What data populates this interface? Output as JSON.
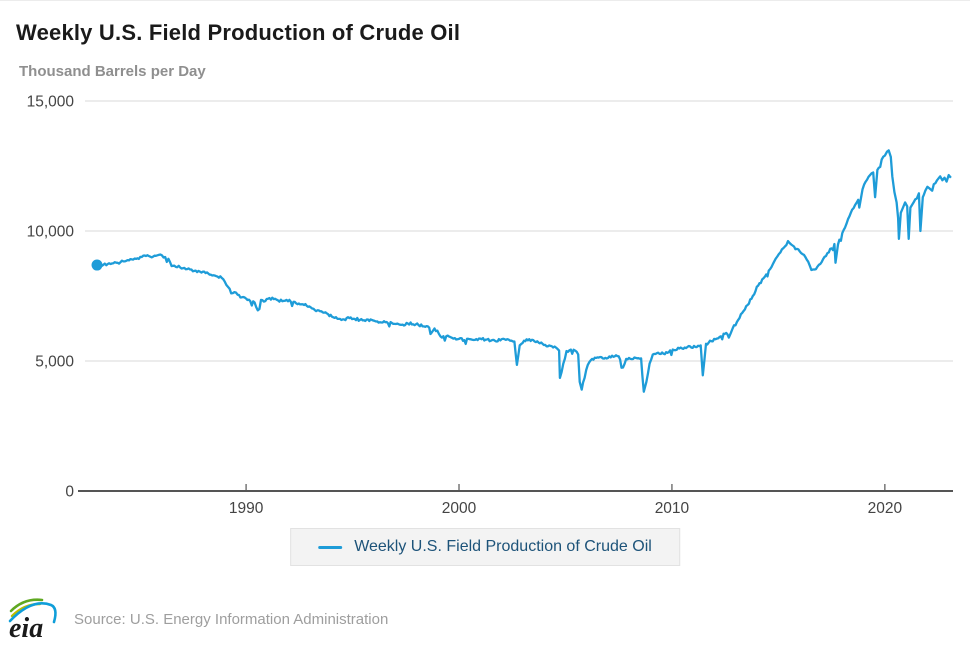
{
  "page": {
    "title": "Weekly U.S. Field Production of Crude Oil",
    "subtitle": "Thousand Barrels per Day",
    "source": "Source: U.S. Energy Information Administration",
    "logo_text": "eia"
  },
  "legend": {
    "label": "Weekly U.S. Field Production of Crude Oil"
  },
  "colors": {
    "line": "#1e9cd8",
    "legend_text": "#1d5379",
    "legend_bg": "#f3f3f3",
    "legend_border": "#e2e2e2",
    "grid": "#d9d9d9",
    "axis": "#555555",
    "tick_label": "#444444",
    "title": "#1a1a1a",
    "subtitle": "#8f8f8f",
    "source_text": "#9e9e9e",
    "logo_green": "#5fa821",
    "logo_yellow": "#bcbe00",
    "logo_blue": "#0f9ed9",
    "logo_text": "#1a1a1a"
  },
  "chart_data": {
    "type": "line",
    "title": "Weekly U.S. Field Production of Crude Oil",
    "xlabel": "",
    "ylabel": "Thousand Barrels per Day",
    "units": "thousand barrels per day",
    "frequency": "weekly",
    "xlim": [
      1982.2,
      2023.2
    ],
    "ylim": [
      0,
      15000
    ],
    "x_ticks": [
      1990,
      2000,
      2010,
      2020
    ],
    "x_tick_labels": [
      "1990",
      "2000",
      "2010",
      "2020"
    ],
    "y_ticks": [
      0,
      5000,
      10000,
      15000
    ],
    "y_tick_labels": [
      "0",
      "5,000",
      "10,000",
      "15,000"
    ],
    "grid": "horizontal",
    "legend_position": "bottom-center",
    "start_marker": true,
    "noise_amplitude": 55,
    "series": [
      {
        "name": "Weekly U.S. Field Production of Crude Oil",
        "points": [
          [
            1983.0,
            8690
          ],
          [
            1983.15,
            8650
          ],
          [
            1983.3,
            8700
          ],
          [
            1983.5,
            8730
          ],
          [
            1983.7,
            8750
          ],
          [
            1983.9,
            8780
          ],
          [
            1984.1,
            8800
          ],
          [
            1984.3,
            8830
          ],
          [
            1984.5,
            8870
          ],
          [
            1984.7,
            8900
          ],
          [
            1984.9,
            8950
          ],
          [
            1985.1,
            9000
          ],
          [
            1985.3,
            9040
          ],
          [
            1985.5,
            9010
          ],
          [
            1985.7,
            9050
          ],
          [
            1985.9,
            9080
          ],
          [
            1986.05,
            9060
          ],
          [
            1986.2,
            9000
          ],
          [
            1986.35,
            8930
          ],
          [
            1986.5,
            8650
          ],
          [
            1986.7,
            8620
          ],
          [
            1986.9,
            8600
          ],
          [
            1987.1,
            8580
          ],
          [
            1987.3,
            8560
          ],
          [
            1987.5,
            8450
          ],
          [
            1987.7,
            8420
          ],
          [
            1987.9,
            8400
          ],
          [
            1988.1,
            8380
          ],
          [
            1988.35,
            8320
          ],
          [
            1988.6,
            8260
          ],
          [
            1988.85,
            8200
          ],
          [
            1989.0,
            8050
          ],
          [
            1989.15,
            7850
          ],
          [
            1989.3,
            7600
          ],
          [
            1989.45,
            7650
          ],
          [
            1989.6,
            7550
          ],
          [
            1989.8,
            7450
          ],
          [
            1990.0,
            7400
          ],
          [
            1990.2,
            7300
          ],
          [
            1990.4,
            7250
          ],
          [
            1990.55,
            6950
          ],
          [
            1990.7,
            7350
          ],
          [
            1990.9,
            7300
          ],
          [
            1991.1,
            7420
          ],
          [
            1991.3,
            7380
          ],
          [
            1991.5,
            7330
          ],
          [
            1991.7,
            7300
          ],
          [
            1991.9,
            7350
          ],
          [
            1992.1,
            7280
          ],
          [
            1992.35,
            7220
          ],
          [
            1992.6,
            7180
          ],
          [
            1992.85,
            7120
          ],
          [
            1993.1,
            7020
          ],
          [
            1993.35,
            6950
          ],
          [
            1993.6,
            6870
          ],
          [
            1993.85,
            6800
          ],
          [
            1994.1,
            6680
          ],
          [
            1994.35,
            6620
          ],
          [
            1994.6,
            6600
          ],
          [
            1994.85,
            6650
          ],
          [
            1995.1,
            6620
          ],
          [
            1995.35,
            6580
          ],
          [
            1995.6,
            6540
          ],
          [
            1995.85,
            6600
          ],
          [
            1996.1,
            6520
          ],
          [
            1996.35,
            6480
          ],
          [
            1996.6,
            6500
          ],
          [
            1996.85,
            6460
          ],
          [
            1997.1,
            6440
          ],
          [
            1997.35,
            6400
          ],
          [
            1997.6,
            6440
          ],
          [
            1997.85,
            6410
          ],
          [
            1998.1,
            6380
          ],
          [
            1998.35,
            6330
          ],
          [
            1998.6,
            6280
          ],
          [
            1998.72,
            6100
          ],
          [
            1998.85,
            6250
          ],
          [
            1999.05,
            6050
          ],
          [
            1999.2,
            5900
          ],
          [
            1999.4,
            5950
          ],
          [
            1999.6,
            5920
          ],
          [
            1999.8,
            5880
          ],
          [
            2000.0,
            5850
          ],
          [
            2000.25,
            5800
          ],
          [
            2000.5,
            5840
          ],
          [
            2000.75,
            5810
          ],
          [
            2001.0,
            5860
          ],
          [
            2001.25,
            5820
          ],
          [
            2001.5,
            5780
          ],
          [
            2001.75,
            5750
          ],
          [
            2002.0,
            5840
          ],
          [
            2002.2,
            5810
          ],
          [
            2002.4,
            5780
          ],
          [
            2002.6,
            5750
          ],
          [
            2002.72,
            4850
          ],
          [
            2002.85,
            5600
          ],
          [
            2003.05,
            5780
          ],
          [
            2003.3,
            5840
          ],
          [
            2003.55,
            5750
          ],
          [
            2003.8,
            5680
          ],
          [
            2004.05,
            5620
          ],
          [
            2004.3,
            5580
          ],
          [
            2004.55,
            5520
          ],
          [
            2004.7,
            5400
          ],
          [
            2004.74,
            4350
          ],
          [
            2004.9,
            4900
          ],
          [
            2005.05,
            5380
          ],
          [
            2005.25,
            5440
          ],
          [
            2005.45,
            5400
          ],
          [
            2005.6,
            5250
          ],
          [
            2005.67,
            4200
          ],
          [
            2005.76,
            3900
          ],
          [
            2005.9,
            4350
          ],
          [
            2006.05,
            4850
          ],
          [
            2006.25,
            5080
          ],
          [
            2006.5,
            5140
          ],
          [
            2006.75,
            5100
          ],
          [
            2007.0,
            5120
          ],
          [
            2007.25,
            5160
          ],
          [
            2007.5,
            5180
          ],
          [
            2007.7,
            4750
          ],
          [
            2007.85,
            5080
          ],
          [
            2008.05,
            5080
          ],
          [
            2008.3,
            5120
          ],
          [
            2008.55,
            5100
          ],
          [
            2008.68,
            3820
          ],
          [
            2008.8,
            4200
          ],
          [
            2008.95,
            4900
          ],
          [
            2009.1,
            5250
          ],
          [
            2009.35,
            5320
          ],
          [
            2009.6,
            5280
          ],
          [
            2009.85,
            5340
          ],
          [
            2010.1,
            5420
          ],
          [
            2010.35,
            5480
          ],
          [
            2010.6,
            5520
          ],
          [
            2010.85,
            5560
          ],
          [
            2011.1,
            5540
          ],
          [
            2011.35,
            5600
          ],
          [
            2011.45,
            4450
          ],
          [
            2011.6,
            5660
          ],
          [
            2011.85,
            5760
          ],
          [
            2012.05,
            5840
          ],
          [
            2012.3,
            5950
          ],
          [
            2012.55,
            6080
          ],
          [
            2012.67,
            5900
          ],
          [
            2012.85,
            6250
          ],
          [
            2013.05,
            6500
          ],
          [
            2013.3,
            6850
          ],
          [
            2013.55,
            7150
          ],
          [
            2013.8,
            7500
          ],
          [
            2014.05,
            7900
          ],
          [
            2014.3,
            8180
          ],
          [
            2014.55,
            8480
          ],
          [
            2014.8,
            8820
          ],
          [
            2014.95,
            9020
          ],
          [
            2015.1,
            9180
          ],
          [
            2015.3,
            9400
          ],
          [
            2015.45,
            9610
          ],
          [
            2015.6,
            9480
          ],
          [
            2015.8,
            9300
          ],
          [
            2016.0,
            9220
          ],
          [
            2016.2,
            9080
          ],
          [
            2016.4,
            8820
          ],
          [
            2016.55,
            8500
          ],
          [
            2016.7,
            8520
          ],
          [
            2016.9,
            8700
          ],
          [
            2017.1,
            8920
          ],
          [
            2017.3,
            9150
          ],
          [
            2017.5,
            9330
          ],
          [
            2017.63,
            9500
          ],
          [
            2017.68,
            8780
          ],
          [
            2017.8,
            9480
          ],
          [
            2018.0,
            9920
          ],
          [
            2018.2,
            10280
          ],
          [
            2018.4,
            10700
          ],
          [
            2018.6,
            11000
          ],
          [
            2018.75,
            11200
          ],
          [
            2018.8,
            10900
          ],
          [
            2018.95,
            11600
          ],
          [
            2019.1,
            11900
          ],
          [
            2019.3,
            12150
          ],
          [
            2019.45,
            12250
          ],
          [
            2019.54,
            11300
          ],
          [
            2019.65,
            12350
          ],
          [
            2019.85,
            12750
          ],
          [
            2020.0,
            12900
          ],
          [
            2020.1,
            13050
          ],
          [
            2020.18,
            13100
          ],
          [
            2020.28,
            12850
          ],
          [
            2020.35,
            12100
          ],
          [
            2020.45,
            11500
          ],
          [
            2020.55,
            11100
          ],
          [
            2020.62,
            10500
          ],
          [
            2020.66,
            9700
          ],
          [
            2020.75,
            10700
          ],
          [
            2020.85,
            10900
          ],
          [
            2020.95,
            11100
          ],
          [
            2021.05,
            10950
          ],
          [
            2021.12,
            9700
          ],
          [
            2021.2,
            10900
          ],
          [
            2021.35,
            11100
          ],
          [
            2021.5,
            11250
          ],
          [
            2021.6,
            11450
          ],
          [
            2021.67,
            10000
          ],
          [
            2021.78,
            11300
          ],
          [
            2021.9,
            11550
          ],
          [
            2022.0,
            11700
          ],
          [
            2022.15,
            11600
          ],
          [
            2022.3,
            11800
          ],
          [
            2022.45,
            11950
          ],
          [
            2022.6,
            12100
          ],
          [
            2022.7,
            11950
          ],
          [
            2022.8,
            12050
          ],
          [
            2022.9,
            11900
          ],
          [
            2023.0,
            12150
          ],
          [
            2023.1,
            12050
          ]
        ]
      }
    ]
  }
}
